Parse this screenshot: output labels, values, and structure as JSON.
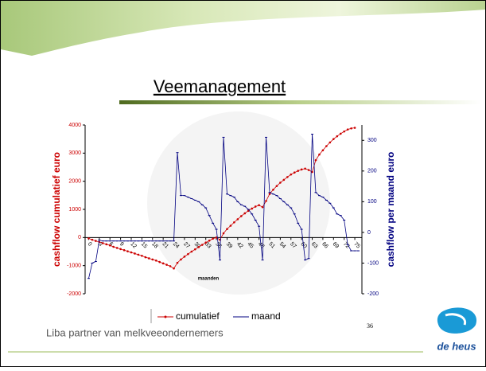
{
  "header": {
    "title": "Veemanagement"
  },
  "chart_data": {
    "type": "line",
    "x_label": "maanden",
    "y_label": "cashflow cumulatief euro",
    "y2_label": "cashflow per maand euro",
    "x": [
      0,
      1,
      2,
      3,
      4,
      5,
      6,
      7,
      8,
      9,
      10,
      11,
      12,
      13,
      14,
      15,
      16,
      17,
      18,
      19,
      20,
      21,
      22,
      23,
      24,
      25,
      26,
      27,
      28,
      29,
      30,
      31,
      32,
      33,
      34,
      35,
      36,
      37,
      38,
      39,
      40,
      41,
      42,
      43,
      44,
      45,
      46,
      47,
      48,
      49,
      50,
      51,
      52,
      53,
      54,
      55,
      56,
      57,
      58,
      59,
      60,
      61,
      62,
      63,
      64,
      65,
      66,
      67,
      68,
      69,
      70,
      71,
      72,
      73,
      74,
      75,
      76
    ],
    "xlim": [
      -1,
      77
    ],
    "xticks": [
      0,
      3,
      6,
      9,
      12,
      15,
      18,
      21,
      24,
      27,
      30,
      33,
      36,
      39,
      42,
      45,
      48,
      51,
      54,
      57,
      60,
      63,
      66,
      69,
      72,
      75
    ],
    "ylim": [
      -2000,
      4000
    ],
    "yticks": [
      -2000,
      -1000,
      0,
      1000,
      2000,
      3000,
      4000
    ],
    "y2lim": [
      -200,
      350
    ],
    "y2ticks": [
      -200,
      -100,
      0,
      100,
      200,
      300
    ],
    "legend": "bottom",
    "series": [
      {
        "name": "cumulatief",
        "color": "#cc0000",
        "values": [
          -30,
          -80,
          -120,
          -160,
          -200,
          -240,
          -280,
          -330,
          -370,
          -410,
          -450,
          -490,
          -530,
          -570,
          -610,
          -650,
          -700,
          -740,
          -780,
          -820,
          -870,
          -920,
          -970,
          -1020,
          -1100,
          -900,
          -780,
          -680,
          -590,
          -500,
          -420,
          -340,
          -260,
          -180,
          -110,
          -40,
          0,
          -80,
          150,
          300,
          420,
          540,
          650,
          760,
          860,
          950,
          1030,
          1100,
          1150,
          1080,
          1300,
          1550,
          1700,
          1830,
          1950,
          2050,
          2150,
          2240,
          2310,
          2370,
          2420,
          2450,
          2400,
          2330,
          2750,
          2950,
          3100,
          3250,
          3380,
          3500,
          3600,
          3690,
          3770,
          3840,
          3880,
          3900,
          null
        ]
      },
      {
        "name": "maand",
        "color": "#000080",
        "axis": "y2",
        "values": [
          -150,
          -100,
          -95,
          -25,
          -28,
          -28,
          -28,
          -28,
          -28,
          -28,
          -28,
          -28,
          -28,
          -28,
          -28,
          -28,
          -28,
          -28,
          -28,
          -28,
          -28,
          -28,
          -28,
          -28,
          -28,
          260,
          120,
          120,
          115,
          110,
          105,
          100,
          90,
          80,
          55,
          30,
          10,
          -90,
          310,
          125,
          120,
          115,
          100,
          90,
          85,
          75,
          60,
          40,
          20,
          -90,
          310,
          130,
          125,
          120,
          110,
          100,
          90,
          80,
          60,
          30,
          10,
          -90,
          -85,
          320,
          130,
          120,
          115,
          105,
          95,
          80,
          60,
          55,
          40,
          -40,
          -60,
          -60,
          -60
        ]
      }
    ]
  },
  "footer": {
    "text": "Liba partner van melkveeondernemers",
    "page": "36"
  },
  "logo": {
    "text": "de heus"
  }
}
